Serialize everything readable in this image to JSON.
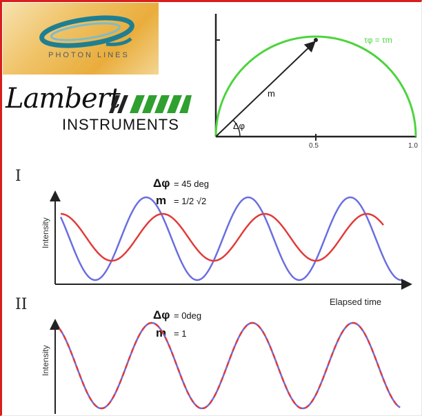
{
  "logos": {
    "photon": {
      "text": "PHOTON LINES"
    },
    "lambert": {
      "script": "Lambert",
      "sub": "INSTRUMENTS"
    }
  },
  "phasor": {
    "label_line": "m",
    "label_angle": "Δφ",
    "label_curve": "τφ = τm",
    "tick_mid": "0.5",
    "tick_end": "1.0",
    "colors": {
      "curve": "#4cd43c",
      "axis": "#222222"
    }
  },
  "panel1": {
    "roman": "I",
    "dphi_symbol": "Δφ",
    "dphi_value": "= 45 deg",
    "m_symbol": "m",
    "m_value": "= 1/2 √2",
    "ylabel": "Intensity",
    "xlabel": "Elapsed time"
  },
  "panel2": {
    "roman": "II",
    "dphi_symbol": "Δφ",
    "dphi_value": "= 0deg",
    "m_symbol": "m",
    "m_value": "= 1",
    "ylabel": "Intensity"
  },
  "colors": {
    "blue": "#6a6ee0",
    "red": "#e23a3a",
    "frame": "#d81e1e"
  }
}
